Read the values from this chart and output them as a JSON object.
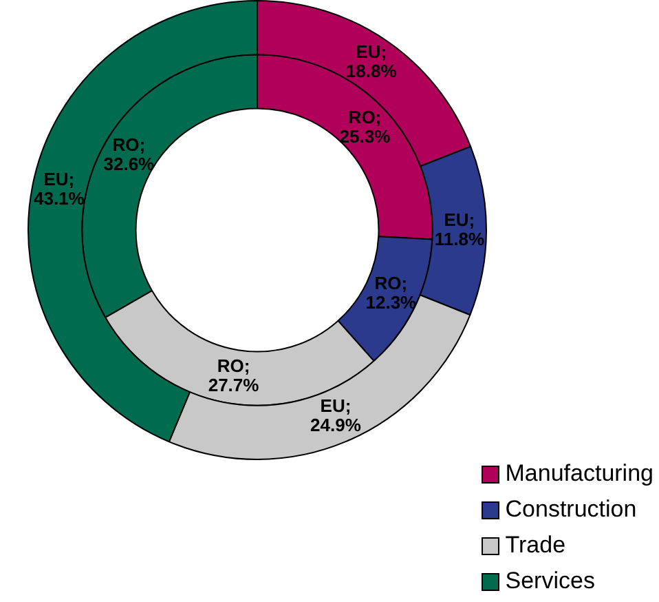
{
  "chart_data": {
    "type": "donut",
    "categories": [
      "Manufacturing",
      "Construction",
      "Trade",
      "Services"
    ],
    "colors": [
      "#b0005a",
      "#2b3a8c",
      "#c8c8c8",
      "#006b4f"
    ],
    "series": [
      {
        "values": [
          18.8,
          11.8,
          24.9,
          43.1
        ],
        "value_labels": [
          "EU; 18.8%",
          "EU; 11.8%",
          "EU; 24.9%",
          "EU; 43.1%"
        ]
      },
      {
        "values": [
          25.3,
          12.3,
          27.7,
          32.6
        ],
        "value_labels": [
          "RO; 25.3%",
          "RO; 12.3%",
          "RO; 27.7%",
          "RO; 32.6%"
        ]
      }
    ],
    "legend": "bottom right"
  }
}
